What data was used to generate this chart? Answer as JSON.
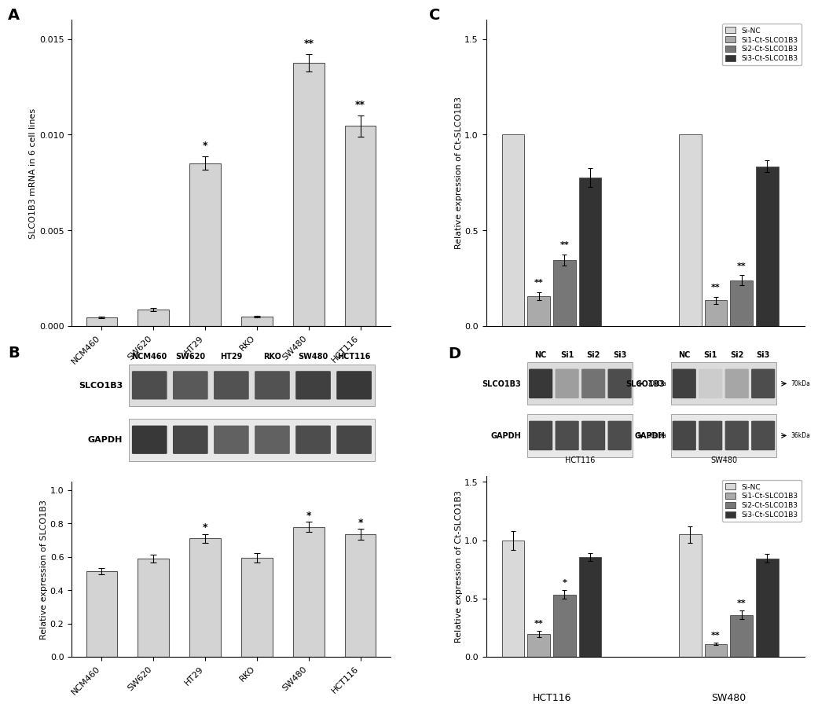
{
  "panel_A": {
    "categories": [
      "NCM460",
      "SW620",
      "HT29",
      "RKO",
      "SW480",
      "HCT116"
    ],
    "values": [
      0.00045,
      0.00085,
      0.0085,
      0.0005,
      0.01375,
      0.01045
    ],
    "errors": [
      5e-05,
      8e-05,
      0.00035,
      5e-05,
      0.00045,
      0.00055
    ],
    "bar_color": "#d3d3d3",
    "bar_edgecolor": "#555555",
    "ylabel": "SLCO1B3 mRNA in 6 cell lines",
    "ylim": [
      0,
      0.016
    ],
    "yticks": [
      0.0,
      0.005,
      0.01,
      0.015
    ],
    "significance": [
      "",
      "",
      "*",
      "",
      "**",
      "**"
    ],
    "label": "A"
  },
  "panel_B_bar": {
    "categories": [
      "NCM460",
      "SW620",
      "HT29",
      "RKO",
      "SW480",
      "HCT116"
    ],
    "values": [
      0.515,
      0.59,
      0.71,
      0.595,
      0.78,
      0.735
    ],
    "errors": [
      0.018,
      0.022,
      0.028,
      0.03,
      0.03,
      0.032
    ],
    "bar_color": "#d3d3d3",
    "bar_edgecolor": "#555555",
    "ylabel": "Relative expression of SLCO1B3",
    "ylim": [
      0,
      1.05
    ],
    "yticks": [
      0.0,
      0.2,
      0.4,
      0.6,
      0.8,
      1.0
    ],
    "significance": [
      "",
      "",
      "*",
      "",
      "*",
      "*"
    ],
    "label": "B"
  },
  "panel_C": {
    "conditions": [
      "Si-NC",
      "Si1-Ct-SLCO1B3",
      "Si2-Ct-SLCO1B3",
      "Si3-Ct-SLCO1B3"
    ],
    "colors": [
      "#d9d9d9",
      "#aaaaaa",
      "#777777",
      "#333333"
    ],
    "HCT116_values": [
      1.0,
      0.155,
      0.345,
      0.775
    ],
    "HCT116_errors": [
      0.0,
      0.02,
      0.03,
      0.05
    ],
    "SW480_values": [
      1.0,
      0.135,
      0.24,
      0.835
    ],
    "SW480_errors": [
      0.0,
      0.018,
      0.025,
      0.03
    ],
    "HCT116_sig": [
      "",
      "**",
      "**",
      ""
    ],
    "SW480_sig": [
      "",
      "**",
      "**",
      ""
    ],
    "ylabel": "Relative expression of Ct-SLCO1B3",
    "ylim": [
      0,
      1.6
    ],
    "yticks": [
      0.0,
      0.5,
      1.0,
      1.5
    ],
    "label": "C"
  },
  "panel_D_bar": {
    "conditions": [
      "Si-NC",
      "Si1-Ct-SLCO1B3",
      "Si2-Ct-SLCO1B3",
      "Si3-Ct-SLCO1B3"
    ],
    "colors": [
      "#d9d9d9",
      "#aaaaaa",
      "#777777",
      "#333333"
    ],
    "HCT116_values": [
      1.0,
      0.195,
      0.535,
      0.855
    ],
    "HCT116_errors": [
      0.08,
      0.025,
      0.035,
      0.035
    ],
    "SW480_values": [
      1.05,
      0.11,
      0.36,
      0.845
    ],
    "SW480_errors": [
      0.07,
      0.012,
      0.035,
      0.035
    ],
    "HCT116_sig": [
      "",
      "**",
      "*",
      ""
    ],
    "SW480_sig": [
      "",
      "**",
      "**",
      ""
    ],
    "ylabel": "Relative expression of Ct-SLCO1B3",
    "ylim": [
      0,
      1.55
    ],
    "yticks": [
      0.0,
      0.5,
      1.0,
      1.5
    ],
    "label": "D"
  },
  "blot_B": {
    "label_SLCO1B3": "SLCO1B3",
    "label_GAPDH": "GAPDH",
    "col_labels": [
      "NCM460",
      "SW620",
      "HT29",
      "RKO",
      "SW480",
      "HCT116"
    ],
    "slco_intensities": [
      0.3,
      0.35,
      0.32,
      0.32,
      0.25,
      0.22
    ],
    "gapdh_intensities": [
      0.22,
      0.28,
      0.38,
      0.38,
      0.3,
      0.28
    ]
  },
  "blot_D_HCT116": {
    "col_labels": [
      "NC",
      "Si1",
      "Si2",
      "Si3"
    ],
    "label_SLCO1B3": "SLCO1B3",
    "label_GAPDH": "GAPDH",
    "arrow_SLCO1B3": "70kDa",
    "arrow_GAPDH": "36kDa",
    "slco_intensities": [
      0.22,
      0.62,
      0.45,
      0.3
    ],
    "gapdh_intensities": [
      0.28,
      0.3,
      0.3,
      0.3
    ]
  },
  "blot_D_SW480": {
    "col_labels": [
      "NC",
      "Si1",
      "Si2",
      "Si3"
    ],
    "label_SLCO1B3": "SLCO1B3",
    "label_GAPDH": "GAPDH",
    "arrow_SLCO1B3": "70kDa",
    "arrow_GAPDH": "36kDa",
    "slco_intensities": [
      0.25,
      0.8,
      0.65,
      0.3
    ],
    "gapdh_intensities": [
      0.28,
      0.3,
      0.3,
      0.3
    ]
  },
  "legend_C": {
    "labels": [
      "Si-NC",
      "Si1-Ct-SLCO1B3",
      "Si2-Ct-SLCO1B3",
      "Si3-Ct-SLCO1B3"
    ],
    "colors": [
      "#d9d9d9",
      "#aaaaaa",
      "#777777",
      "#333333"
    ]
  },
  "legend_D": {
    "labels": [
      "Si-NC",
      "Si1-Ct-SLCO1B3",
      "Si2-Ct-SLCO1B3",
      "Si3-Ct-SLCO1B3"
    ],
    "colors": [
      "#d9d9d9",
      "#aaaaaa",
      "#777777",
      "#333333"
    ]
  },
  "bg_color": "#ffffff"
}
